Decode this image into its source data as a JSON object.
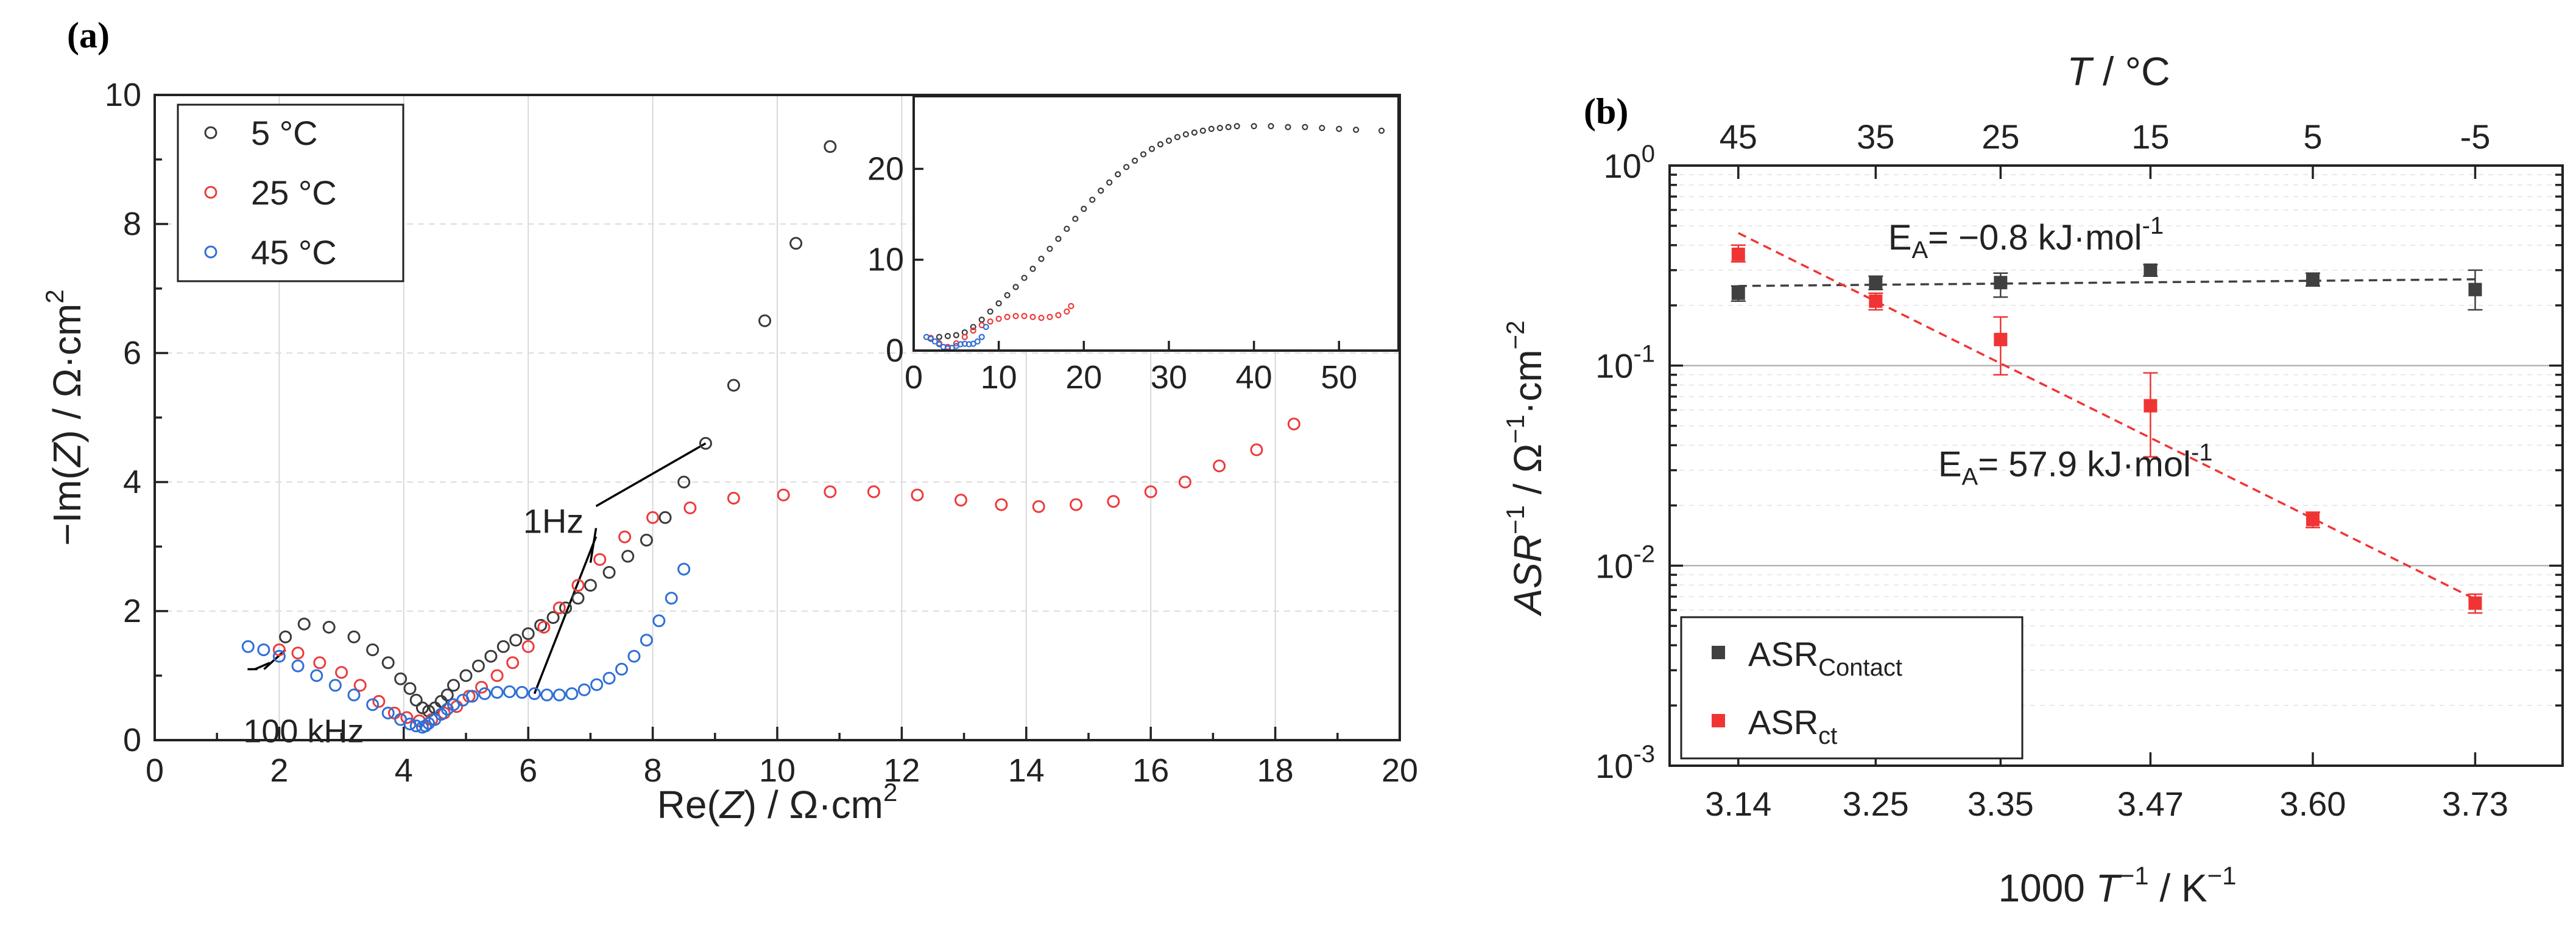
{
  "chart_data": [
    {
      "panel": "(a)",
      "type": "scatter",
      "xlabel_main": "Re(",
      "xlabel_var": "Z",
      "xlabel_unit": ") / Ω·cm",
      "xlabel_sup": "2",
      "ylabel_main": "−Im(",
      "ylabel_var": "Z",
      "ylabel_unit": ") / Ω·cm",
      "ylabel_sup": "2",
      "xlim": [
        0,
        20
      ],
      "ylim": [
        0,
        10
      ],
      "x_ticks": [
        "0",
        "2",
        "4",
        "6",
        "8",
        "10",
        "12",
        "14",
        "16",
        "18",
        "20"
      ],
      "y_ticks": [
        "0",
        "2",
        "4",
        "6",
        "8",
        "10"
      ],
      "legend": {
        "placement": "top-left",
        "entries": [
          {
            "label": "5 °C",
            "color": "#3a3a3a"
          },
          {
            "label": "25 °C",
            "color": "#ee3a3a"
          },
          {
            "label": "45 °C",
            "color": "#2f6fd6"
          }
        ]
      },
      "annotations": [
        {
          "text": "1Hz",
          "points": [
            [
              8.85,
              4.6
            ],
            [
              7.0,
              2.75
            ],
            [
              6.1,
              0.72
            ]
          ],
          "anchor": [
            6.6,
            3.4
          ]
        },
        {
          "text": "100 kHz",
          "points": [
            [
              1.65,
              1.1
            ],
            [
              1.85,
              1.2
            ],
            [
              2.1,
              1.4
            ]
          ],
          "anchor": [
            2.0,
            0.25
          ]
        }
      ],
      "series": [
        {
          "name": "5 °C",
          "color": "#3a3a3a",
          "x": [
            2.1,
            2.4,
            2.8,
            3.2,
            3.5,
            3.75,
            3.95,
            4.1,
            4.2,
            4.3,
            4.4,
            4.5,
            4.6,
            4.7,
            4.8,
            5.0,
            5.2,
            5.4,
            5.6,
            5.8,
            6.0,
            6.2,
            6.4,
            6.6,
            6.8,
            7.0,
            7.3,
            7.6,
            7.9,
            8.2,
            8.5,
            8.85,
            9.3,
            9.8,
            10.3,
            10.85
          ],
          "y": [
            1.6,
            1.8,
            1.75,
            1.6,
            1.4,
            1.2,
            0.95,
            0.8,
            0.62,
            0.5,
            0.45,
            0.5,
            0.6,
            0.7,
            0.85,
            1.0,
            1.15,
            1.3,
            1.45,
            1.55,
            1.65,
            1.78,
            1.9,
            2.05,
            2.2,
            2.4,
            2.6,
            2.85,
            3.1,
            3.45,
            4.0,
            4.6,
            5.5,
            6.5,
            7.7,
            9.2
          ]
        },
        {
          "name": "25 °C",
          "color": "#ee3a3a",
          "x": [
            2.0,
            2.3,
            2.65,
            3.0,
            3.3,
            3.6,
            3.85,
            4.05,
            4.25,
            4.45,
            4.65,
            4.85,
            5.05,
            5.25,
            5.5,
            5.75,
            6.0,
            6.25,
            6.5,
            6.8,
            7.15,
            7.55,
            8.0,
            8.6,
            9.3,
            10.1,
            10.85,
            11.55,
            12.25,
            12.95,
            13.6,
            14.2,
            14.8,
            15.4,
            16.0,
            16.55,
            17.1,
            17.7,
            18.3
          ],
          "y": [
            1.4,
            1.35,
            1.2,
            1.05,
            0.85,
            0.6,
            0.42,
            0.35,
            0.3,
            0.32,
            0.42,
            0.52,
            0.68,
            0.82,
            1.0,
            1.2,
            1.45,
            1.75,
            2.05,
            2.4,
            2.8,
            3.15,
            3.45,
            3.6,
            3.75,
            3.8,
            3.85,
            3.85,
            3.8,
            3.72,
            3.65,
            3.62,
            3.65,
            3.7,
            3.85,
            4.0,
            4.25,
            4.5,
            4.9
          ]
        },
        {
          "name": "45 °C",
          "color": "#2f6fd6",
          "x": [
            1.5,
            1.75,
            2.0,
            2.3,
            2.6,
            2.9,
            3.2,
            3.5,
            3.75,
            3.95,
            4.1,
            4.2,
            4.3,
            4.35,
            4.4,
            4.5,
            4.6,
            4.7,
            4.8,
            4.95,
            5.1,
            5.3,
            5.5,
            5.7,
            5.9,
            6.1,
            6.3,
            6.5,
            6.7,
            6.9,
            7.1,
            7.3,
            7.5,
            7.7,
            7.9,
            8.1,
            8.3,
            8.5
          ],
          "y": [
            1.45,
            1.4,
            1.3,
            1.15,
            1.0,
            0.85,
            0.7,
            0.55,
            0.42,
            0.32,
            0.25,
            0.22,
            0.2,
            0.22,
            0.26,
            0.32,
            0.4,
            0.48,
            0.55,
            0.62,
            0.68,
            0.72,
            0.74,
            0.75,
            0.74,
            0.72,
            0.7,
            0.7,
            0.72,
            0.78,
            0.86,
            0.96,
            1.1,
            1.3,
            1.55,
            1.85,
            2.2,
            2.65
          ]
        }
      ],
      "inset": {
        "xlim": [
          0,
          57
        ],
        "ylim": [
          0,
          28
        ],
        "x_ticks": [
          "0",
          "10",
          "20",
          "30",
          "40",
          "50"
        ],
        "y_ticks": [
          "0",
          "10",
          "20"
        ],
        "series": [
          {
            "name": "5 °C",
            "color": "#3a3a3a",
            "x": [
              3,
              4,
              5,
              6,
              7,
              8,
              9,
              10,
              11,
              12,
              13,
              14,
              15,
              16,
              17,
              18,
              19,
              20,
              21,
              22,
              23,
              24,
              25,
              26,
              27,
              28,
              29,
              30,
              31,
              32,
              33,
              34,
              35,
              36,
              37,
              38,
              40,
              42,
              44,
              46,
              48,
              50,
              52,
              55
            ],
            "y": [
              1.5,
              1.6,
              1.7,
              2.0,
              2.6,
              3.4,
              4.3,
              5.2,
              6.1,
              7.0,
              8.0,
              9.0,
              10.1,
              11.2,
              12.3,
              13.4,
              14.5,
              15.6,
              16.6,
              17.6,
              18.5,
              19.4,
              20.2,
              20.9,
              21.6,
              22.2,
              22.7,
              23.1,
              23.5,
              23.8,
              24.0,
              24.2,
              24.4,
              24.5,
              24.6,
              24.7,
              24.7,
              24.7,
              24.6,
              24.6,
              24.5,
              24.4,
              24.3,
              24.2
            ]
          },
          {
            "name": "25 °C",
            "color": "#ee3a3a",
            "x": [
              2,
              3,
              4,
              5,
              6,
              7,
              8,
              9,
              10,
              11,
              12,
              13,
              14,
              15,
              16,
              17,
              18,
              18.5
            ],
            "y": [
              1.4,
              0.8,
              0.4,
              0.8,
              1.5,
              2.2,
              2.8,
              3.2,
              3.5,
              3.7,
              3.8,
              3.8,
              3.7,
              3.6,
              3.7,
              3.9,
              4.3,
              4.9
            ]
          },
          {
            "name": "45 °C",
            "color": "#2f6fd6",
            "x": [
              1.5,
              2,
              2.5,
              3,
              3.5,
              4,
              4.5,
              5,
              5.5,
              6,
              6.5,
              7,
              7.5,
              8,
              8.5
            ],
            "y": [
              1.5,
              1.3,
              1.0,
              0.7,
              0.4,
              0.25,
              0.3,
              0.5,
              0.7,
              0.75,
              0.7,
              0.75,
              1.0,
              1.5,
              2.6
            ]
          }
        ]
      }
    },
    {
      "panel": "(b)",
      "type": "scatter",
      "yscale": "log",
      "ylim": [
        0.001,
        1
      ],
      "xlim": [
        3.085,
        3.8
      ],
      "xlabel_main": "1000 ",
      "xlabel_var": "T",
      "xlabel_sup1": "−1",
      "xlabel_unit": " / K",
      "xlabel_sup2": "−1",
      "ylabel_var": "ASR",
      "ylabel_sup1": "−1",
      "ylabel_unit": " / Ω",
      "ylabel_sup2": "−1",
      "ylabel_unit2": "·cm",
      "ylabel_sup3": "−2",
      "top_axis_label_var": "T",
      "top_axis_label_unit": " / °C",
      "x_ticks": [
        {
          "value": 3.14,
          "label": "3.14"
        },
        {
          "value": 3.25,
          "label": "3.25"
        },
        {
          "value": 3.35,
          "label": "3.35"
        },
        {
          "value": 3.47,
          "label": "3.47"
        },
        {
          "value": 3.6,
          "label": "3.60"
        },
        {
          "value": 3.73,
          "label": "3.73"
        }
      ],
      "top_ticks": [
        "45",
        "35",
        "25",
        "15",
        "5",
        "-5"
      ],
      "y_ticks": [
        {
          "value": 0.001,
          "base": "10",
          "exp": "-3"
        },
        {
          "value": 0.01,
          "base": "10",
          "exp": "-2"
        },
        {
          "value": 0.1,
          "base": "10",
          "exp": "-1"
        },
        {
          "value": 1,
          "base": "10",
          "exp": "0"
        }
      ],
      "legend": {
        "placement": "bottom-left",
        "entries": [
          {
            "label": "ASR",
            "sub": "Contact",
            "color": "#404040"
          },
          {
            "label": "ASR",
            "sub": "ct",
            "color": "#f03434"
          }
        ]
      },
      "annotations": [
        {
          "text_pre": "E",
          "sub": "A",
          "text_post": "= −0.8 kJ·mol",
          "sup": "-1",
          "color": "#555555",
          "anchor_x": 3.26,
          "anchor_y": 0.38
        },
        {
          "text_pre": "E",
          "sub": "A",
          "text_post": "= 57.9 kJ·mol",
          "sup": "-1",
          "color": "#f03434",
          "anchor_x": 3.3,
          "anchor_y": 0.028
        }
      ],
      "series": [
        {
          "name": "ASR Contact",
          "color": "#404040",
          "x": [
            3.14,
            3.25,
            3.35,
            3.47,
            3.6,
            3.73
          ],
          "y": [
            0.23,
            0.26,
            0.26,
            0.3,
            0.27,
            0.24
          ],
          "err_low": [
            0.21,
            0.24,
            0.22,
            0.28,
            0.25,
            0.19
          ],
          "err_high": [
            0.25,
            0.28,
            0.29,
            0.32,
            0.29,
            0.3
          ],
          "fit": {
            "x": [
              3.14,
              3.73
            ],
            "y": [
              0.25,
              0.27
            ]
          }
        },
        {
          "name": "ASR ct",
          "color": "#f03434",
          "x": [
            3.14,
            3.25,
            3.35,
            3.47,
            3.6,
            3.73
          ],
          "y": [
            0.36,
            0.21,
            0.135,
            0.063,
            0.017,
            0.0065
          ],
          "err_low": [
            0.33,
            0.19,
            0.09,
            0.035,
            0.0155,
            0.0058
          ],
          "err_high": [
            0.4,
            0.23,
            0.175,
            0.092,
            0.0185,
            0.0072
          ],
          "fit": {
            "x": [
              3.14,
              3.73
            ],
            "y": [
              0.46,
              0.0068
            ]
          }
        }
      ]
    }
  ]
}
